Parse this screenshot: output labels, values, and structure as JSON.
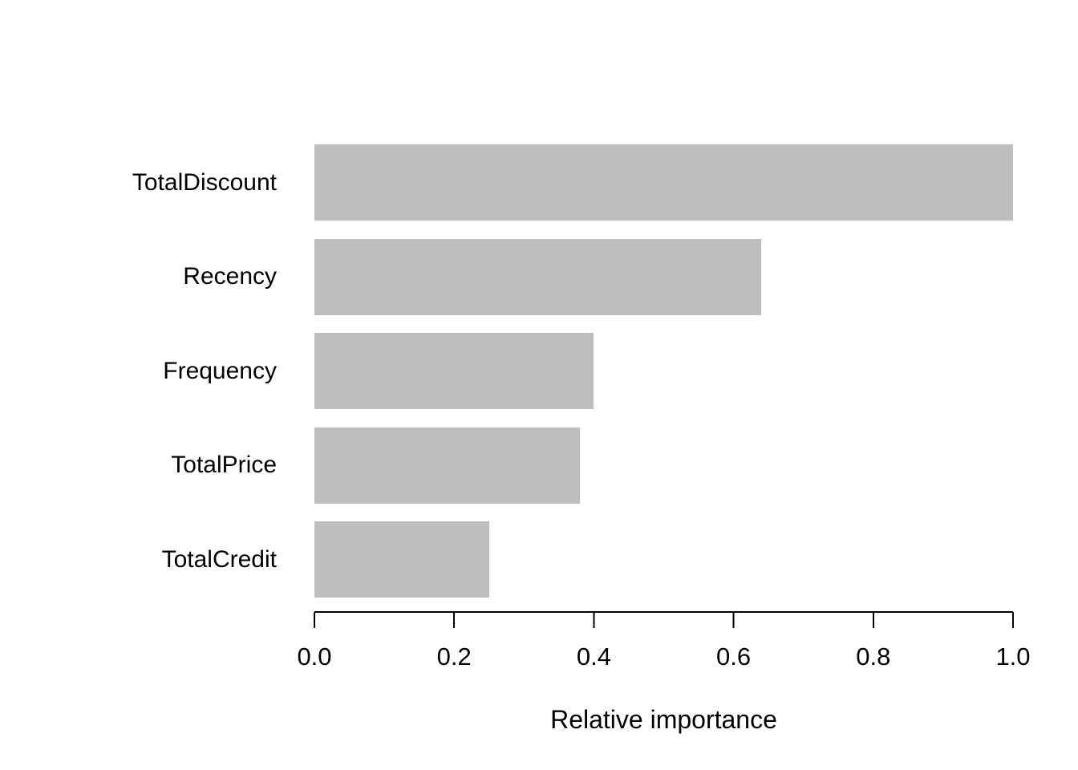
{
  "chart_data": {
    "type": "bar",
    "orientation": "horizontal",
    "title": "",
    "xlabel": "Relative importance",
    "ylabel": "",
    "categories": [
      "TotalDiscount",
      "Recency",
      "Frequency",
      "TotalPrice",
      "TotalCredit"
    ],
    "values": [
      1.0,
      0.64,
      0.4,
      0.38,
      0.25
    ],
    "xlim": [
      0,
      1.0
    ],
    "xticks": [
      0.0,
      0.2,
      0.4,
      0.6,
      0.8,
      1.0
    ],
    "xtick_labels": [
      "0.0",
      "0.2",
      "0.4",
      "0.6",
      "0.8",
      "1.0"
    ],
    "grid": false,
    "legend": null,
    "bar_color": "#BEBEBE",
    "axis_color": "#000000",
    "text_color": "#000000",
    "background_color": "#FFFFFF"
  }
}
